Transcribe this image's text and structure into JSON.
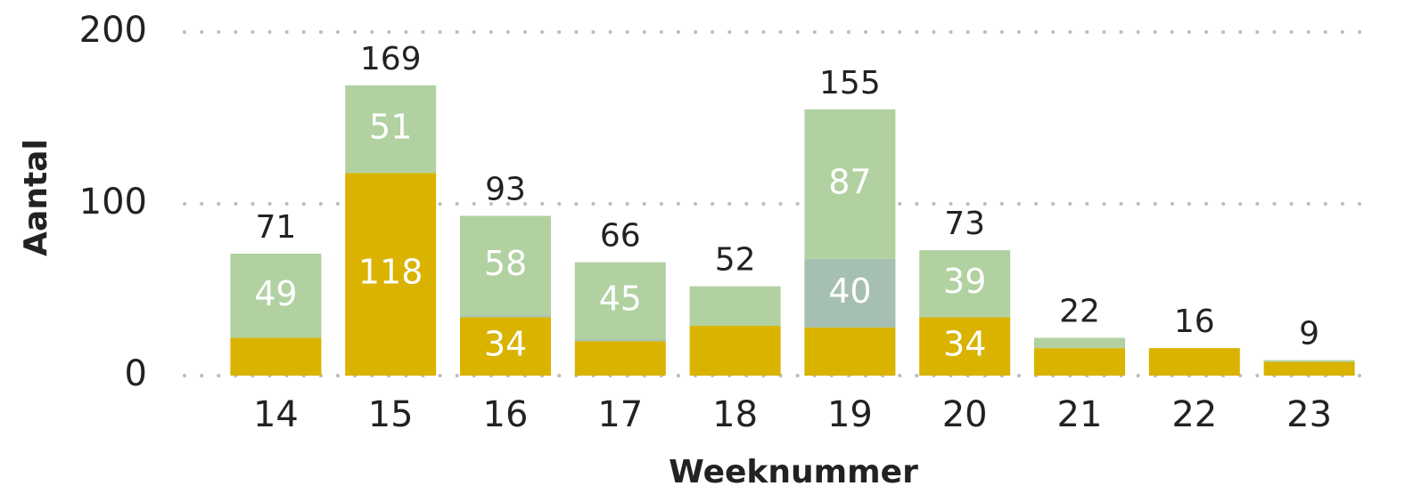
{
  "chart_data": {
    "type": "stacked-bar",
    "x_label": "Weeknummer",
    "y_label": "Aantal",
    "categories": [
      "14",
      "15",
      "16",
      "17",
      "18",
      "19",
      "20",
      "21",
      "22",
      "23"
    ],
    "series": [
      {
        "color": "#d9b300",
        "values": [
          22,
          118,
          34,
          20,
          29,
          28,
          34,
          16,
          16,
          8
        ],
        "value_labels": [
          null,
          "118",
          "34",
          null,
          null,
          null,
          "34",
          null,
          null,
          null
        ]
      },
      {
        "color": "#a5bfb1",
        "values": [
          0,
          0,
          1,
          1,
          0,
          40,
          0,
          0,
          0,
          0
        ],
        "value_labels": [
          null,
          null,
          null,
          null,
          null,
          "40",
          null,
          null,
          null,
          null
        ]
      },
      {
        "color": "#b1d1a1",
        "values": [
          49,
          51,
          58,
          45,
          23,
          87,
          39,
          6,
          0,
          1
        ],
        "value_labels": [
          "49",
          "51",
          "58",
          "45",
          null,
          "87",
          "39",
          null,
          null,
          null
        ]
      }
    ],
    "totals": [
      71,
      169,
      93,
      66,
      52,
      155,
      73,
      22,
      16,
      9
    ],
    "ylim": [
      0,
      200
    ],
    "yticks": [
      0,
      100,
      200
    ],
    "grid": true
  }
}
